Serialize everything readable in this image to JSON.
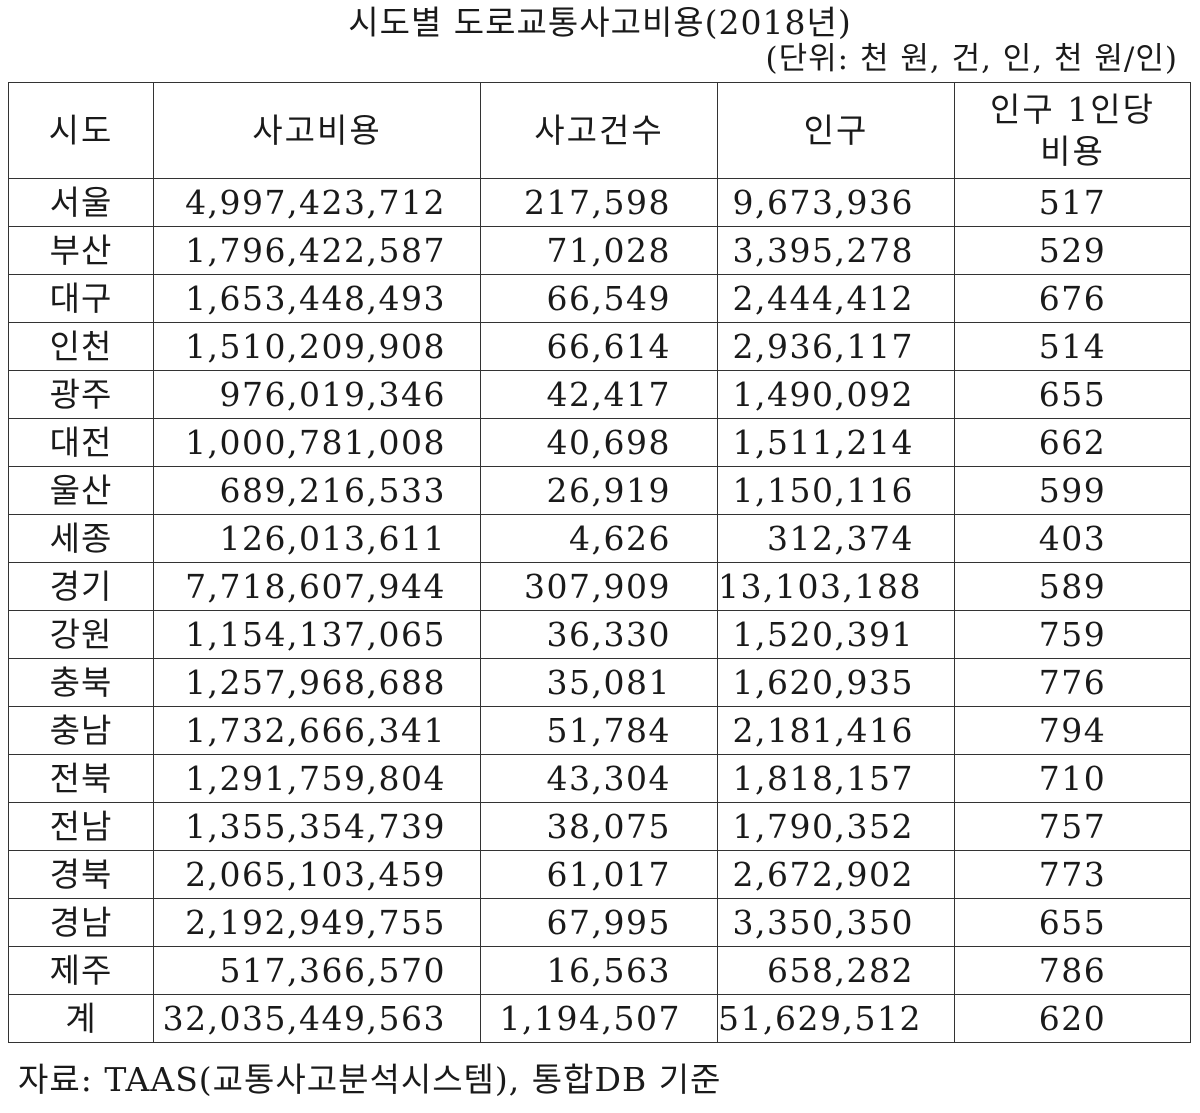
{
  "title": "시도별 도로교통사고비용(2018년)",
  "unit": "(단위: 천 원, 건, 인, 천 원/인)",
  "table": {
    "headers": [
      "시도",
      "사고비용",
      "사고건수",
      "인구",
      "인구 1인당",
      "비용"
    ],
    "rows": [
      {
        "region": "서울",
        "cost": "4,997,423,712",
        "cases": "217,598",
        "population": "9,673,936",
        "per_capita": "517"
      },
      {
        "region": "부산",
        "cost": "1,796,422,587",
        "cases": "71,028",
        "population": "3,395,278",
        "per_capita": "529"
      },
      {
        "region": "대구",
        "cost": "1,653,448,493",
        "cases": "66,549",
        "population": "2,444,412",
        "per_capita": "676"
      },
      {
        "region": "인천",
        "cost": "1,510,209,908",
        "cases": "66,614",
        "population": "2,936,117",
        "per_capita": "514"
      },
      {
        "region": "광주",
        "cost": "976,019,346",
        "cases": "42,417",
        "population": "1,490,092",
        "per_capita": "655"
      },
      {
        "region": "대전",
        "cost": "1,000,781,008",
        "cases": "40,698",
        "population": "1,511,214",
        "per_capita": "662"
      },
      {
        "region": "울산",
        "cost": "689,216,533",
        "cases": "26,919",
        "population": "1,150,116",
        "per_capita": "599"
      },
      {
        "region": "세종",
        "cost": "126,013,611",
        "cases": "4,626",
        "population": "312,374",
        "per_capita": "403"
      },
      {
        "region": "경기",
        "cost": "7,718,607,944",
        "cases": "307,909",
        "population": "13,103,188",
        "per_capita": "589"
      },
      {
        "region": "강원",
        "cost": "1,154,137,065",
        "cases": "36,330",
        "population": "1,520,391",
        "per_capita": "759"
      },
      {
        "region": "충북",
        "cost": "1,257,968,688",
        "cases": "35,081",
        "population": "1,620,935",
        "per_capita": "776"
      },
      {
        "region": "충남",
        "cost": "1,732,666,341",
        "cases": "51,784",
        "population": "2,181,416",
        "per_capita": "794"
      },
      {
        "region": "전북",
        "cost": "1,291,759,804",
        "cases": "43,304",
        "population": "1,818,157",
        "per_capita": "710"
      },
      {
        "region": "전남",
        "cost": "1,355,354,739",
        "cases": "38,075",
        "population": "1,790,352",
        "per_capita": "757"
      },
      {
        "region": "경북",
        "cost": "2,065,103,459",
        "cases": "61,017",
        "population": "2,672,902",
        "per_capita": "773"
      },
      {
        "region": "경남",
        "cost": "2,192,949,755",
        "cases": "67,995",
        "population": "3,350,350",
        "per_capita": "655"
      },
      {
        "region": "제주",
        "cost": "517,366,570",
        "cases": "16,563",
        "population": "658,282",
        "per_capita": "786"
      }
    ],
    "total": {
      "region": "계",
      "cost": "32,035,449,563",
      "cases": "1,194,507",
      "population": "51,629,512",
      "per_capita": "620"
    }
  },
  "source": "자료: TAAS(교통사고분석시스템), 통합DB 기준"
}
